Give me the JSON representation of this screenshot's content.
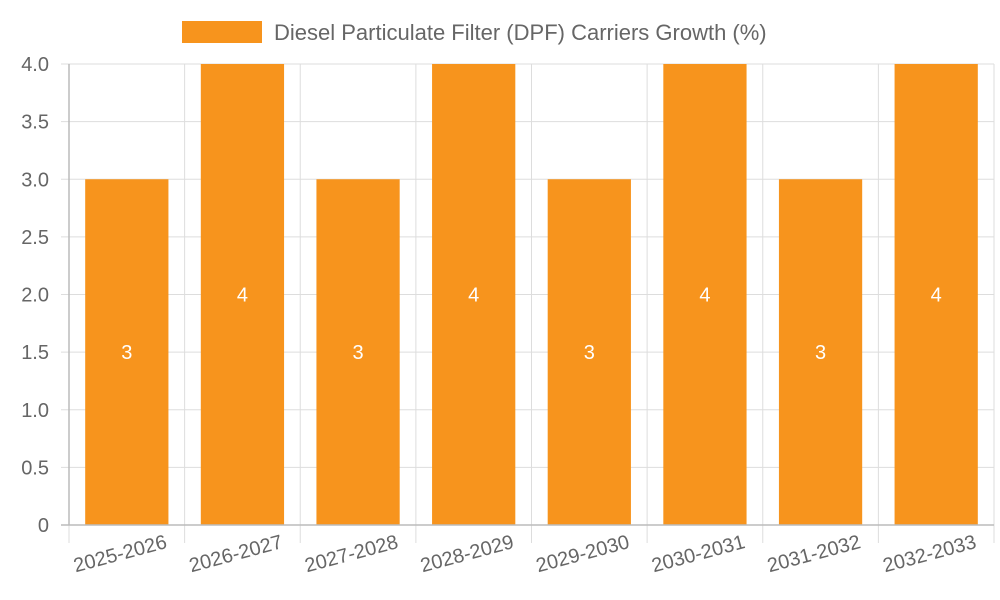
{
  "chart_data": {
    "type": "bar",
    "categories": [
      "2025-2026",
      "2026-2027",
      "2027-2028",
      "2028-2029",
      "2029-2030",
      "2030-2031",
      "2031-2032",
      "2032-2033"
    ],
    "series": [
      {
        "name": "Diesel Particulate Filter (DPF) Carriers Growth (%)",
        "values": [
          3,
          4,
          3,
          4,
          3,
          4,
          3,
          4
        ],
        "color": "#f7941d"
      }
    ],
    "y_ticks": [
      "0",
      "0.5",
      "1.0",
      "1.5",
      "2.0",
      "2.5",
      "3.0",
      "3.5",
      "4.0"
    ],
    "ylim": [
      0,
      4
    ],
    "grid": true,
    "legend_position": "top-center",
    "data_labels": [
      "3",
      "4",
      "3",
      "4",
      "3",
      "4",
      "3",
      "4"
    ]
  }
}
